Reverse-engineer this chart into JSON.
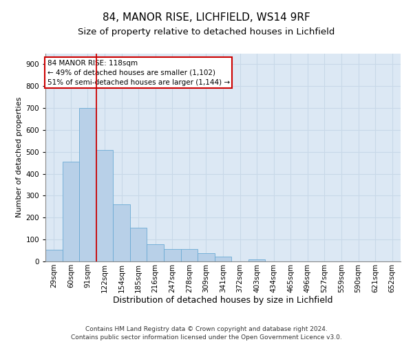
{
  "title1": "84, MANOR RISE, LICHFIELD, WS14 9RF",
  "title2": "Size of property relative to detached houses in Lichfield",
  "xlabel": "Distribution of detached houses by size in Lichfield",
  "ylabel": "Number of detached properties",
  "categories": [
    "29sqm",
    "60sqm",
    "91sqm",
    "122sqm",
    "154sqm",
    "185sqm",
    "216sqm",
    "247sqm",
    "278sqm",
    "309sqm",
    "341sqm",
    "372sqm",
    "403sqm",
    "434sqm",
    "465sqm",
    "496sqm",
    "527sqm",
    "559sqm",
    "590sqm",
    "621sqm",
    "652sqm"
  ],
  "values": [
    52,
    455,
    700,
    510,
    260,
    155,
    80,
    57,
    55,
    38,
    22,
    0,
    10,
    0,
    0,
    0,
    0,
    0,
    0,
    0,
    0
  ],
  "bar_color": "#b8d0e8",
  "bar_edge_color": "#6aaad4",
  "vline_color": "#cc0000",
  "vline_pos": 2.5,
  "annotation_text": "84 MANOR RISE: 118sqm\n← 49% of detached houses are smaller (1,102)\n51% of semi-detached houses are larger (1,144) →",
  "annotation_box_color": "#ffffff",
  "annotation_box_edge_color": "#cc0000",
  "ylim": [
    0,
    950
  ],
  "yticks": [
    0,
    100,
    200,
    300,
    400,
    500,
    600,
    700,
    800,
    900
  ],
  "grid_color": "#c8d8e8",
  "background_color": "#dce8f4",
  "footer_text": "Contains HM Land Registry data © Crown copyright and database right 2024.\nContains public sector information licensed under the Open Government Licence v3.0.",
  "title1_fontsize": 11,
  "title2_fontsize": 9.5,
  "xlabel_fontsize": 9,
  "ylabel_fontsize": 8,
  "tick_fontsize": 7.5,
  "footer_fontsize": 6.5,
  "annot_fontsize": 7.5
}
